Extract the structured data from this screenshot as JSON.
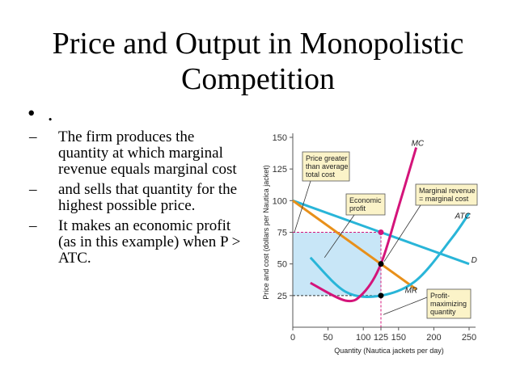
{
  "slide": {
    "title_line1": "Price and Output in Monopolistic",
    "title_line2": "Competition",
    "bullet": ".",
    "points": [
      "The firm produces the quantity at which marginal revenue equals marginal cost",
      "and sells that quantity for the highest possible price.",
      "It makes an economic profit (as in this example) when P > ATC."
    ]
  },
  "chart": {
    "ylabel": "Price and cost (dollars per Nautica jacket)",
    "xlabel": "Quantity (Nautica jackets per day)",
    "x_ticks": [
      "0",
      "50",
      "100",
      "125",
      "150",
      "200",
      "250"
    ],
    "y_ticks": [
      "25",
      "50",
      "75",
      "100",
      "125",
      "150"
    ],
    "curve_labels": {
      "mc": "MC",
      "atc": "ATC",
      "d": "D",
      "mr": "MR"
    },
    "annotations": {
      "price_greater": [
        "Price greater",
        "than average",
        "total cost"
      ],
      "economic_profit": [
        "Economic",
        "profit"
      ],
      "mr_eq_mc": [
        "Marginal revenue",
        "= marginal cost"
      ],
      "profit_max": [
        "Profit-",
        "maximizing",
        "quantity"
      ]
    },
    "colors": {
      "d": "#29b5d8",
      "mr": "#e8901a",
      "mc": "#d4147a",
      "atc": "#29b5d8",
      "profit": "#c8e6f7",
      "price_dot": "#d4147a",
      "box": "#fbf3c8"
    }
  },
  "chart_data": {
    "type": "line",
    "xlim": [
      0,
      250
    ],
    "ylim": [
      0,
      150
    ],
    "series": [
      {
        "name": "D",
        "x": [
          0,
          125,
          250
        ],
        "y": [
          100,
          75,
          50
        ]
      },
      {
        "name": "MR",
        "x": [
          0,
          125,
          175
        ],
        "y": [
          100,
          50,
          30
        ]
      },
      {
        "name": "MC",
        "x": [
          25,
          75,
          100,
          125,
          150,
          175
        ],
        "y": [
          35,
          21,
          27,
          50,
          95,
          142
        ]
      },
      {
        "name": "ATC",
        "x": [
          25,
          75,
          125,
          175,
          225,
          250
        ],
        "y": [
          55,
          28,
          25,
          37,
          70,
          90
        ]
      }
    ],
    "points": [
      {
        "x": 125,
        "y": 75
      },
      {
        "x": 125,
        "y": 50
      },
      {
        "x": 125,
        "y": 25
      }
    ],
    "profit_area": {
      "x": [
        0,
        125
      ],
      "y": [
        25,
        75
      ]
    }
  }
}
